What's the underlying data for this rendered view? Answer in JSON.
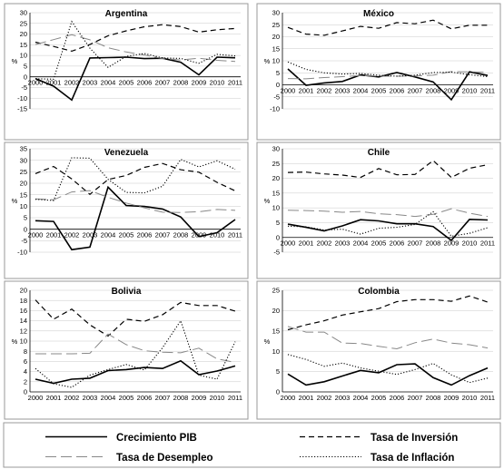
{
  "legend": {
    "items": [
      {
        "label": "Crecimiento PIB",
        "series": "gdp"
      },
      {
        "label": "Tasa de Inversión",
        "series": "inv"
      },
      {
        "label": "Tasa de Desempleo",
        "series": "unemp"
      },
      {
        "label": "Tasa de Inflación",
        "series": "infl"
      }
    ]
  },
  "series_styles": {
    "gdp": {
      "dash": "",
      "width": 1.6
    },
    "inv": {
      "dash": "6,4",
      "width": 1.2
    },
    "unemp": {
      "dash": "12,5",
      "width": 1.0,
      "color": "#888888"
    },
    "infl": {
      "dash": "1.2,2",
      "width": 1.1
    }
  },
  "chart_data": [
    {
      "type": "line",
      "title": "Argentina",
      "ylabel": "%",
      "ylim": [
        -15,
        30
      ],
      "yticks": [
        "-15",
        "-10",
        "-5",
        "0",
        "5",
        "10",
        "15",
        "20",
        "25",
        "30"
      ],
      "x": [
        "2000",
        "2001",
        "2002",
        "2003",
        "2004",
        "2005",
        "2006",
        "2007",
        "2008",
        "2009",
        "2010",
        "2011"
      ],
      "series": [
        {
          "key": "gdp",
          "values": [
            -0.8,
            -4.4,
            -10.9,
            8.8,
            9.0,
            9.2,
            8.5,
            8.7,
            6.8,
            0.9,
            9.2,
            8.9
          ]
        },
        {
          "key": "inv",
          "values": [
            16.2,
            14.2,
            12.0,
            15.1,
            19.2,
            21.5,
            23.4,
            24.4,
            23.5,
            20.9,
            22.0,
            22.6
          ]
        },
        {
          "key": "unemp",
          "values": [
            15.1,
            17.4,
            19.7,
            17.3,
            13.6,
            11.6,
            10.2,
            8.5,
            7.9,
            8.7,
            7.7,
            7.2
          ]
        },
        {
          "key": "infl",
          "values": [
            -0.9,
            -1.1,
            25.9,
            13.4,
            4.4,
            9.6,
            10.9,
            8.8,
            8.6,
            6.3,
            10.5,
            9.8
          ]
        }
      ]
    },
    {
      "type": "line",
      "title": "México",
      "ylabel": "%",
      "ylim": [
        -10,
        30
      ],
      "yticks": [
        "-10",
        "-5",
        "0",
        "5",
        "10",
        "15",
        "20",
        "25",
        "30"
      ],
      "x": [
        "2000",
        "2001",
        "2002",
        "2003",
        "2004",
        "2005",
        "2006",
        "2007",
        "2008",
        "2009",
        "2010",
        "2011"
      ],
      "series": [
        {
          "key": "gdp",
          "values": [
            6.6,
            -0.2,
            0.8,
            1.4,
            4.1,
            3.3,
            5.1,
            3.3,
            1.2,
            -6.2,
            5.4,
            3.9
          ]
        },
        {
          "key": "inv",
          "values": [
            23.9,
            21.1,
            20.6,
            22.4,
            24.3,
            23.5,
            25.9,
            25.4,
            26.9,
            23.3,
            24.8,
            24.8
          ]
        },
        {
          "key": "unemp",
          "values": [
            2.6,
            2.5,
            3.0,
            3.4,
            3.9,
            3.6,
            3.6,
            3.7,
            4.0,
            5.5,
            5.4,
            5.2
          ]
        },
        {
          "key": "infl",
          "values": [
            9.5,
            6.4,
            5.0,
            4.5,
            4.7,
            4.0,
            3.6,
            4.0,
            5.1,
            5.3,
            4.2,
            3.4
          ]
        }
      ]
    },
    {
      "type": "line",
      "title": "Venezuela",
      "ylabel": "%",
      "ylim": [
        -10,
        35
      ],
      "yticks": [
        "-10",
        "-5",
        "0",
        "5",
        "10",
        "15",
        "20",
        "25",
        "30",
        "35"
      ],
      "x": [
        "2000",
        "2001",
        "2002",
        "2003",
        "2004",
        "2005",
        "2006",
        "2007",
        "2008",
        "2009",
        "2010",
        "2011"
      ],
      "series": [
        {
          "key": "gdp",
          "values": [
            3.7,
            3.4,
            -8.9,
            -7.8,
            18.3,
            10.3,
            9.9,
            8.8,
            5.3,
            -3.2,
            -1.5,
            4.2
          ]
        },
        {
          "key": "inv",
          "values": [
            24.2,
            27.3,
            21.9,
            15.2,
            21.6,
            23.4,
            26.9,
            28.6,
            25.9,
            24.8,
            20.4,
            16.7
          ]
        },
        {
          "key": "unemp",
          "values": [
            13.2,
            12.8,
            16.2,
            16.8,
            13.9,
            11.4,
            9.3,
            7.4,
            7.3,
            7.6,
            8.6,
            8.2
          ]
        },
        {
          "key": "infl",
          "values": [
            13.0,
            12.5,
            31.1,
            30.9,
            21.7,
            16.0,
            15.8,
            18.7,
            30.4,
            27.1,
            29.8,
            26.1
          ]
        }
      ]
    },
    {
      "type": "line",
      "title": "Chile",
      "ylabel": "%",
      "ylim": [
        -5,
        30
      ],
      "yticks": [
        "-5",
        "0",
        "5",
        "10",
        "15",
        "20",
        "25",
        "30"
      ],
      "x": [
        "2000",
        "2001",
        "2002",
        "2003",
        "2004",
        "2005",
        "2006",
        "2007",
        "2008",
        "2009",
        "2010",
        "2011"
      ],
      "series": [
        {
          "key": "gdp",
          "values": [
            4.5,
            3.4,
            2.2,
            3.9,
            6.0,
            5.6,
            4.6,
            4.6,
            3.7,
            -1.0,
            6.1,
            5.9
          ]
        },
        {
          "key": "inv",
          "values": [
            22.0,
            22.1,
            21.5,
            21.1,
            20.3,
            23.3,
            21.2,
            21.3,
            26.0,
            20.3,
            23.4,
            24.6
          ]
        },
        {
          "key": "unemp",
          "values": [
            9.2,
            9.1,
            8.9,
            8.5,
            8.8,
            8.0,
            7.7,
            7.1,
            7.8,
            9.7,
            8.2,
            7.1
          ]
        },
        {
          "key": "infl",
          "values": [
            3.8,
            3.6,
            2.5,
            2.8,
            1.1,
            3.1,
            3.4,
            4.4,
            8.7,
            0.4,
            1.4,
            3.3
          ]
        }
      ]
    },
    {
      "type": "line",
      "title": "Bolivia",
      "ylabel": "%",
      "ylim": [
        0,
        20
      ],
      "yticks": [
        "0",
        "2",
        "4",
        "6",
        "8",
        "10",
        "12",
        "14",
        "16",
        "18",
        "20"
      ],
      "x": [
        "2000",
        "2001",
        "2002",
        "2003",
        "2004",
        "2005",
        "2006",
        "2007",
        "2008",
        "2009",
        "2010",
        "2011"
      ],
      "series": [
        {
          "key": "gdp",
          "values": [
            2.5,
            1.7,
            2.5,
            2.7,
            4.2,
            4.4,
            4.8,
            4.6,
            6.1,
            3.4,
            4.1,
            5.1
          ]
        },
        {
          "key": "inv",
          "values": [
            18.1,
            14.3,
            16.3,
            13.2,
            11.0,
            14.3,
            13.9,
            15.2,
            17.6,
            17.0,
            17.0,
            15.9
          ]
        },
        {
          "key": "unemp",
          "values": [
            7.5,
            7.5,
            7.5,
            7.6,
            11.4,
            9.3,
            8.1,
            7.8,
            7.7,
            8.6,
            6.5,
            5.8
          ]
        },
        {
          "key": "infl",
          "values": [
            4.6,
            1.6,
            0.9,
            3.3,
            4.4,
            5.4,
            4.3,
            8.7,
            14.0,
            3.3,
            2.5,
            9.9
          ]
        }
      ]
    },
    {
      "type": "line",
      "title": "Colombia",
      "ylabel": "%",
      "ylim": [
        0,
        25
      ],
      "yticks": [
        "0",
        "5",
        "10",
        "15",
        "20",
        "25"
      ],
      "x": [
        "2000",
        "2001",
        "2002",
        "2003",
        "2004",
        "2005",
        "2006",
        "2007",
        "2008",
        "2009",
        "2010",
        "2011"
      ],
      "series": [
        {
          "key": "gdp",
          "values": [
            4.4,
            1.7,
            2.5,
            3.9,
            5.3,
            4.7,
            6.7,
            6.9,
            3.5,
            1.7,
            4.0,
            5.9
          ]
        },
        {
          "key": "inv",
          "values": [
            15.3,
            16.5,
            17.5,
            18.9,
            19.7,
            20.5,
            22.2,
            22.7,
            22.7,
            22.3,
            23.6,
            22.1
          ]
        },
        {
          "key": "unemp",
          "values": [
            16.1,
            14.7,
            14.7,
            12.0,
            11.9,
            11.2,
            10.6,
            12.1,
            13.0,
            12.0,
            11.6,
            10.8
          ]
        },
        {
          "key": "infl",
          "values": [
            9.2,
            8.0,
            6.3,
            7.1,
            5.9,
            5.1,
            4.3,
            5.5,
            7.0,
            4.2,
            2.3,
            3.4
          ]
        }
      ]
    }
  ]
}
